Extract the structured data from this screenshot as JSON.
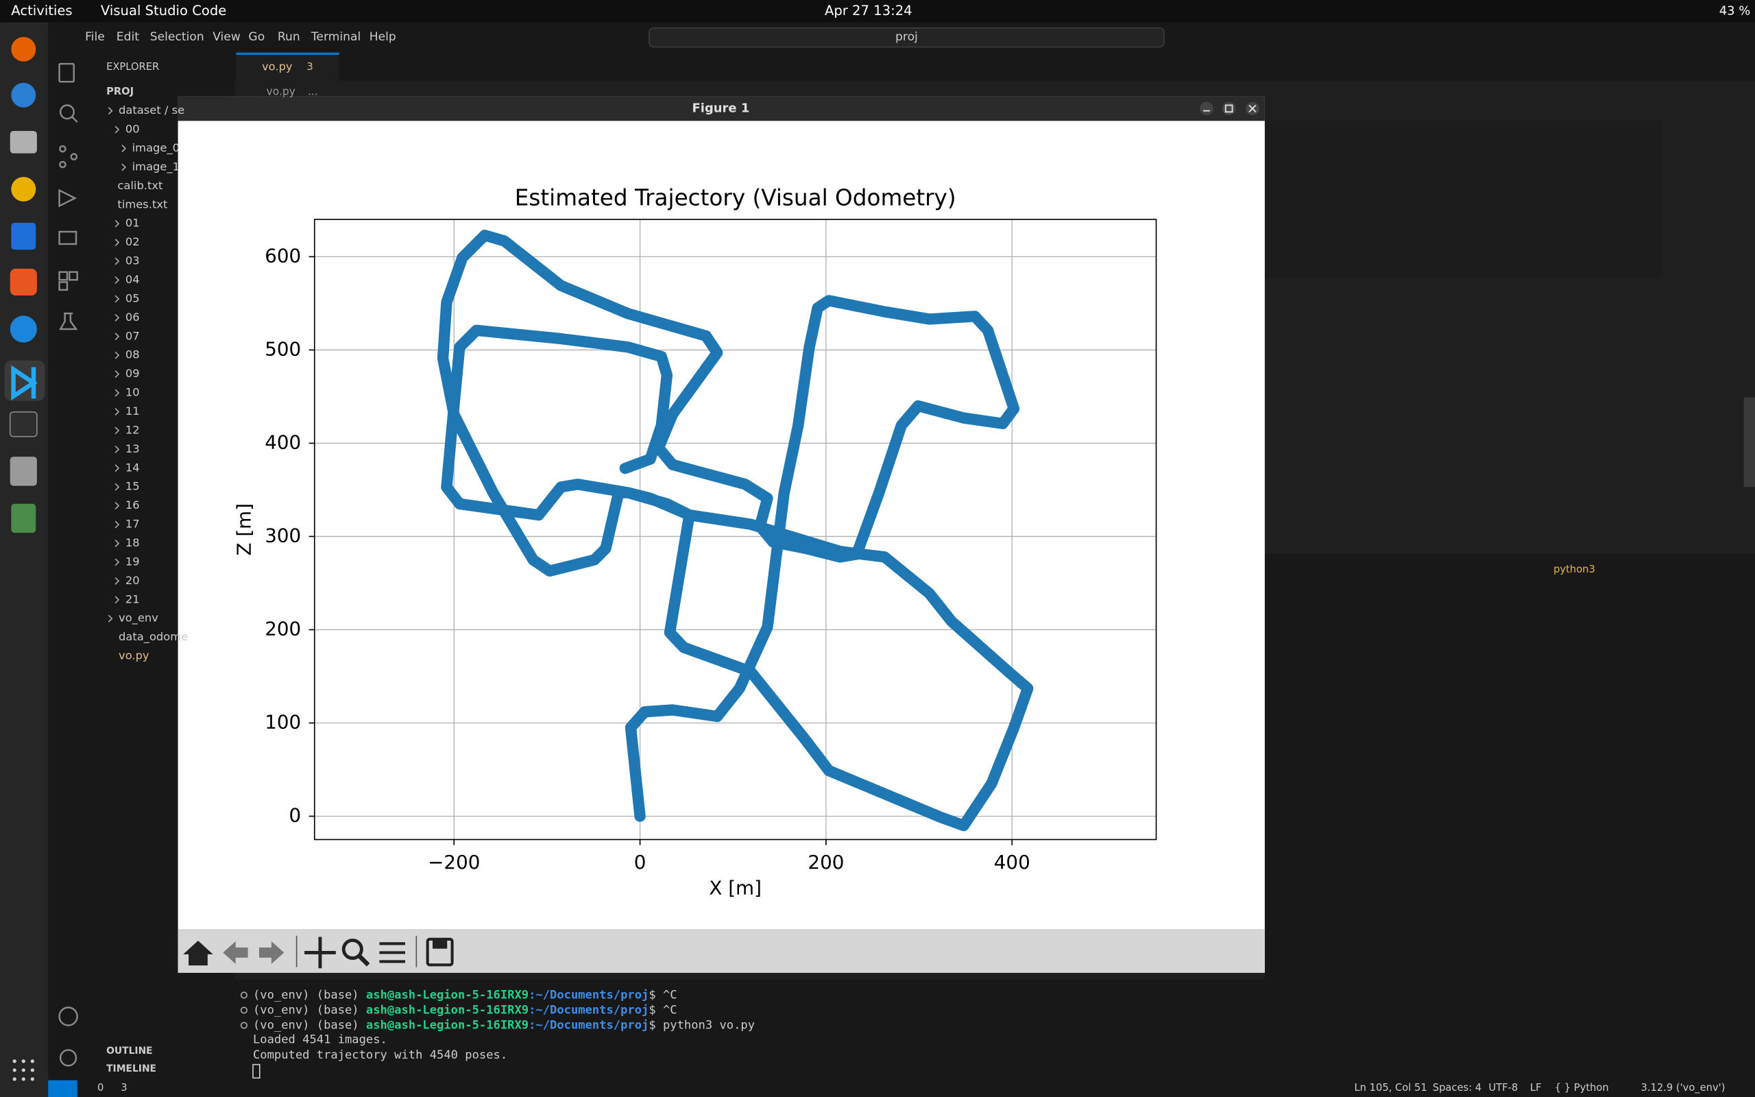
{
  "topbar": {
    "activities": "Activities",
    "app": "Visual Studio Code",
    "datetime": "Apr 27  13:24",
    "battery": "43 %"
  },
  "menu": [
    "File",
    "Edit",
    "Selection",
    "View",
    "Go",
    "Run",
    "Terminal",
    "Help"
  ],
  "search": "proj",
  "explorer": {
    "title": "EXPLORER",
    "root": "PROJ",
    "items": [
      "dataset / se",
      "00",
      "image_0",
      "image_1",
      "calib.txt",
      "times.txt",
      "01",
      "02",
      "03",
      "04",
      "05",
      "06",
      "07",
      "08",
      "09",
      "10",
      "11",
      "12",
      "13",
      "14",
      "15",
      "16",
      "17",
      "18",
      "19",
      "20",
      "21",
      "vo_env",
      "data_odome",
      "vo.py"
    ],
    "outline": "OUTLINE",
    "timeline": "TIMELINE"
  },
  "editor": {
    "tab": "vo.py",
    "tab_badge": "3",
    "breadcrumb": "vo.py",
    "breadcrumb_more": "..."
  },
  "figure": {
    "window_title": "Figure 1"
  },
  "chart_data": {
    "type": "line",
    "title": "Estimated Trajectory (Visual Odometry)",
    "x_label": "X [m]",
    "y_label": "Z [m]",
    "x": [
      0,
      -10,
      5,
      35,
      83,
      107,
      137,
      146,
      155,
      170,
      182,
      191,
      203,
      263,
      311,
      360,
      374,
      402,
      390,
      348,
      299,
      281,
      257,
      233,
      215,
      179,
      143,
      129,
      137,
      113,
      35,
      20,
      35,
      83,
      71,
      -13,
      -85,
      -146,
      -167,
      -191,
      -208,
      -212,
      -200,
      -158,
      -115,
      -97,
      -49,
      -37,
      -23,
      -13,
      11,
      53,
      119,
      215,
      263,
      311,
      335,
      396,
      417,
      402,
      378,
      348,
      323,
      203,
      177,
      119,
      47,
      32,
      41,
      53,
      29,
      -13,
      -67,
      -85,
      -109,
      -194,
      -208,
      -202,
      -194,
      -176,
      -85,
      -13,
      23,
      29,
      23,
      11,
      -16
    ],
    "series": [
      {
        "color": "#1f77b4",
        "values": [
          0,
          95,
          112,
          114,
          107,
          137,
          203,
          275,
          347,
          419,
          503,
          545,
          553,
          541,
          533,
          536,
          521,
          437,
          421,
          427,
          440,
          419,
          347,
          281,
          278,
          287,
          294,
          311,
          341,
          356,
          377,
          395,
          431,
          497,
          515,
          539,
          569,
          617,
          623,
          599,
          551,
          491,
          431,
          347,
          275,
          263,
          275,
          287,
          347,
          347,
          341,
          323,
          313,
          284,
          278,
          239,
          209,
          155,
          137,
          95,
          35,
          -10,
          -1,
          49,
          83,
          155,
          181,
          197,
          251,
          323,
          335,
          347,
          356,
          353,
          323,
          335,
          353,
          419,
          503,
          521,
          512,
          503,
          493,
          473,
          419,
          383,
          373
        ]
      }
    ],
    "xlim": [
      -350,
      555
    ],
    "ylim": [
      -25,
      640
    ],
    "xticks": [
      {
        "value": -200,
        "label": "−200"
      },
      0,
      200,
      400
    ],
    "yticks": [
      0,
      100,
      200,
      300,
      400,
      500,
      600
    ],
    "grid": true
  },
  "terminal": {
    "tab": "python3",
    "prompts": [
      {
        "env": "(vo_env) (base)",
        "user": "ash@ash-Legion-5-16IRX9",
        "path": ":~/Documents/proj",
        "cmd": "$ ^C"
      },
      {
        "env": "(vo_env) (base)",
        "user": "ash@ash-Legion-5-16IRX9",
        "path": ":~/Documents/proj",
        "cmd": "$ ^C"
      },
      {
        "env": "(vo_env) (base)",
        "user": "ash@ash-Legion-5-16IRX9",
        "path": ":~/Documents/proj",
        "cmd": "$ python3 vo.py"
      }
    ],
    "output": [
      "Loaded 4541 images.",
      "Computed trajectory with 4540 poses."
    ]
  },
  "statusbar": {
    "errors": "0",
    "warnings": "3",
    "position": "Ln 105, Col 51",
    "spaces": "Spaces: 4",
    "encoding": "UTF-8",
    "eol": "LF",
    "language": "{ } Python",
    "interpreter": "3.12.9 ('vo_env')"
  }
}
